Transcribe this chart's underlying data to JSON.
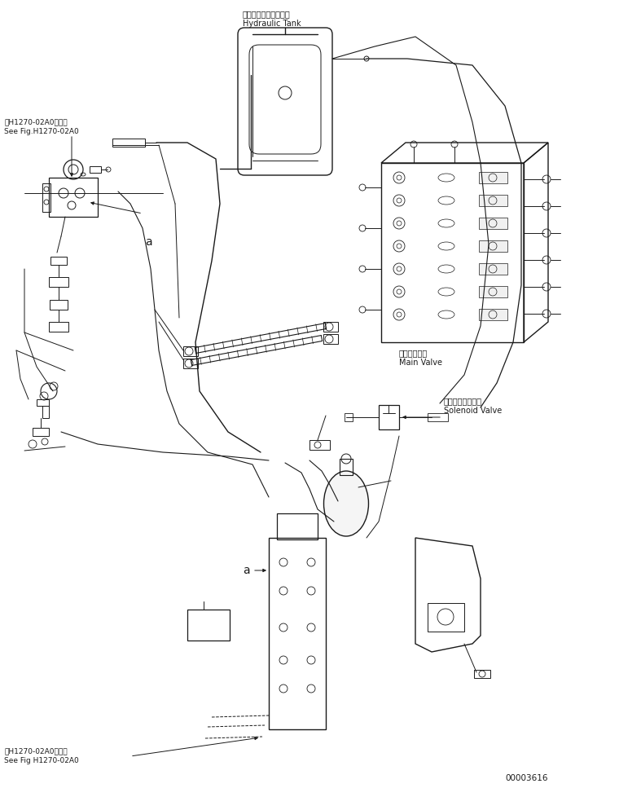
{
  "background_color": "#ffffff",
  "line_color": "#1a1a1a",
  "text_color": "#1a1a1a",
  "label_top_japanese": "ハイドロリックタンク",
  "label_top_english": "Hydraulic Tank",
  "label_main_valve_jp": "メインバルブ",
  "label_main_valve_en": "Main Valve",
  "label_solenoid_jp": "ソレノイドバルブ",
  "label_solenoid_en": "Solenoid Valve",
  "label_ref1_jp": "第H1270-02A0図参照",
  "label_ref1_en": "See Fig.H1270-02A0",
  "label_ref2_jp": "第H1270-02A0図参照",
  "label_ref2_en": "See Fig H1270-02A0",
  "label_a1": "a",
  "label_a2": "a",
  "part_number": "00003616",
  "fig_width": 7.6,
  "fig_height": 9.67,
  "dpi": 100
}
